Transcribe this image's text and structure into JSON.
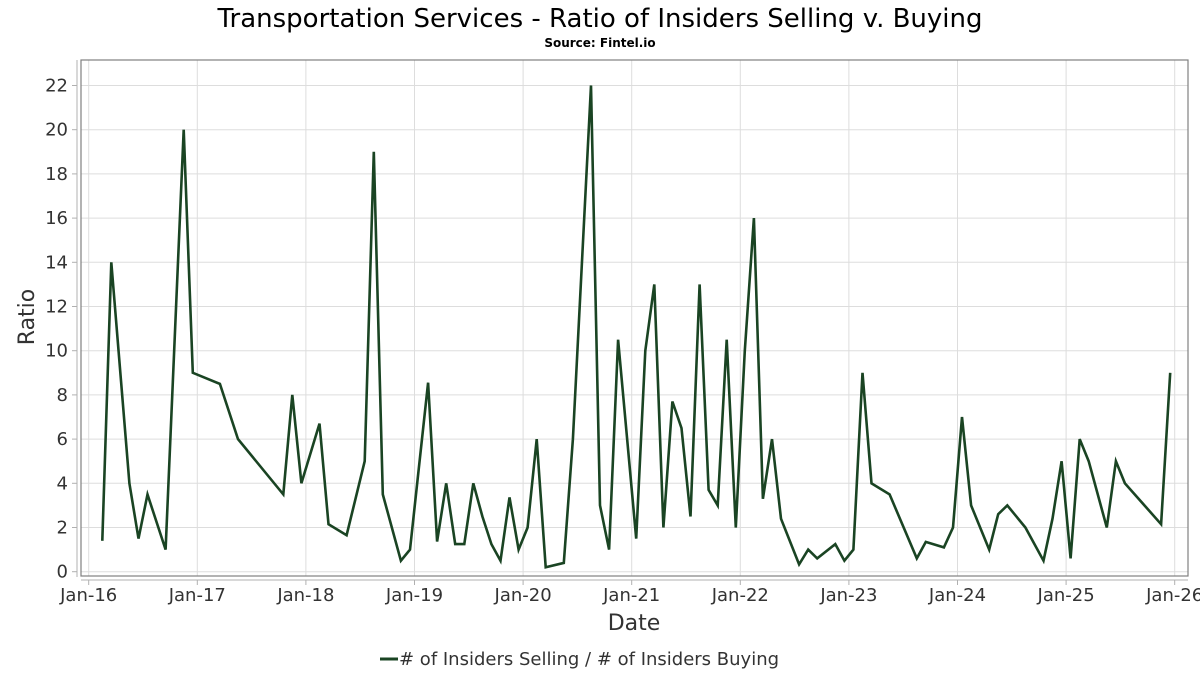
{
  "chart_data": {
    "type": "line",
    "title": "Transportation Services - Ratio of Insiders Selling v. Buying",
    "subtitle": "Source: Fintel.io",
    "xlabel": "Date",
    "ylabel": "Ratio",
    "ylim": [
      0,
      23.15
    ],
    "xlim": [
      "2016-01",
      "2026-02"
    ],
    "grid": true,
    "legend_position": "bottom-center",
    "y_ticks": [
      "0",
      "2",
      "4",
      "6",
      "8",
      "10",
      "12",
      "14",
      "16",
      "18",
      "20",
      "22"
    ],
    "x_ticks": [
      "Jan-16",
      "Jan-17",
      "Jan-18",
      "Jan-19",
      "Jan-20",
      "Jan-21",
      "Jan-22",
      "Jan-23",
      "Jan-24",
      "Jan-25",
      "Jan-26"
    ],
    "series": [
      {
        "name": "# of Insiders Selling / # of Insiders Buying",
        "color": "#1a4423",
        "points": [
          [
            "2016-02",
            1.4
          ],
          [
            "2016-03",
            14
          ],
          [
            "2016-05",
            4
          ],
          [
            "2016-06",
            1.5
          ],
          [
            "2016-07",
            3.5
          ],
          [
            "2016-09",
            1
          ],
          [
            "2016-11",
            20
          ],
          [
            "2016-12",
            9
          ],
          [
            "2017-03",
            8.5
          ],
          [
            "2017-05",
            6
          ],
          [
            "2017-10",
            3.5
          ],
          [
            "2017-11",
            8
          ],
          [
            "2017-12",
            4
          ],
          [
            "2018-02",
            6.7
          ],
          [
            "2018-03",
            2.15
          ],
          [
            "2018-05",
            1.65
          ],
          [
            "2018-07",
            5
          ],
          [
            "2018-08",
            19
          ],
          [
            "2018-09",
            3.5
          ],
          [
            "2018-11",
            0.5
          ],
          [
            "2018-12",
            1
          ],
          [
            "2019-02",
            8.55
          ],
          [
            "2019-03",
            1.36
          ],
          [
            "2019-04",
            4
          ],
          [
            "2019-05",
            1.25
          ],
          [
            "2019-06",
            1.25
          ],
          [
            "2019-07",
            4
          ],
          [
            "2019-08",
            2.5
          ],
          [
            "2019-09",
            1.25
          ],
          [
            "2019-10",
            0.5
          ],
          [
            "2019-11",
            3.36
          ],
          [
            "2019-12",
            1
          ],
          [
            "2020-01",
            2
          ],
          [
            "2020-02",
            6
          ],
          [
            "2020-03",
            0.2
          ],
          [
            "2020-05",
            0.4
          ],
          [
            "2020-06",
            6
          ],
          [
            "2020-08",
            22
          ],
          [
            "2020-09",
            3
          ],
          [
            "2020-10",
            1
          ],
          [
            "2020-11",
            10.5
          ],
          [
            "2021-01",
            1.5
          ],
          [
            "2021-02",
            10
          ],
          [
            "2021-03",
            13
          ],
          [
            "2021-04",
            2
          ],
          [
            "2021-05",
            7.7
          ],
          [
            "2021-06",
            6.5
          ],
          [
            "2021-07",
            2.5
          ],
          [
            "2021-08",
            13
          ],
          [
            "2021-09",
            3.7
          ],
          [
            "2021-10",
            3
          ],
          [
            "2021-11",
            10.5
          ],
          [
            "2021-12",
            2
          ],
          [
            "2022-01",
            10
          ],
          [
            "2022-02",
            16
          ],
          [
            "2022-03",
            3.3
          ],
          [
            "2022-04",
            6
          ],
          [
            "2022-05",
            2.4
          ],
          [
            "2022-07",
            0.33
          ],
          [
            "2022-08",
            1
          ],
          [
            "2022-09",
            0.6
          ],
          [
            "2022-11",
            1.25
          ],
          [
            "2022-12",
            0.5
          ],
          [
            "2023-01",
            1
          ],
          [
            "2023-02",
            9
          ],
          [
            "2023-03",
            4
          ],
          [
            "2023-05",
            3.5
          ],
          [
            "2023-08",
            0.6
          ],
          [
            "2023-09",
            1.35
          ],
          [
            "2023-11",
            1.1
          ],
          [
            "2023-12",
            2
          ],
          [
            "2024-01",
            7
          ],
          [
            "2024-02",
            3
          ],
          [
            "2024-04",
            1
          ],
          [
            "2024-05",
            2.6
          ],
          [
            "2024-06",
            3
          ],
          [
            "2024-08",
            2
          ],
          [
            "2024-10",
            0.5
          ],
          [
            "2024-11",
            2.4
          ],
          [
            "2024-12",
            5
          ],
          [
            "2025-01",
            0.6
          ],
          [
            "2025-02",
            6
          ],
          [
            "2025-03",
            5
          ],
          [
            "2025-05",
            2
          ],
          [
            "2025-06",
            5
          ],
          [
            "2025-07",
            4
          ],
          [
            "2025-11",
            2.15
          ],
          [
            "2025-12",
            9
          ]
        ]
      }
    ]
  }
}
